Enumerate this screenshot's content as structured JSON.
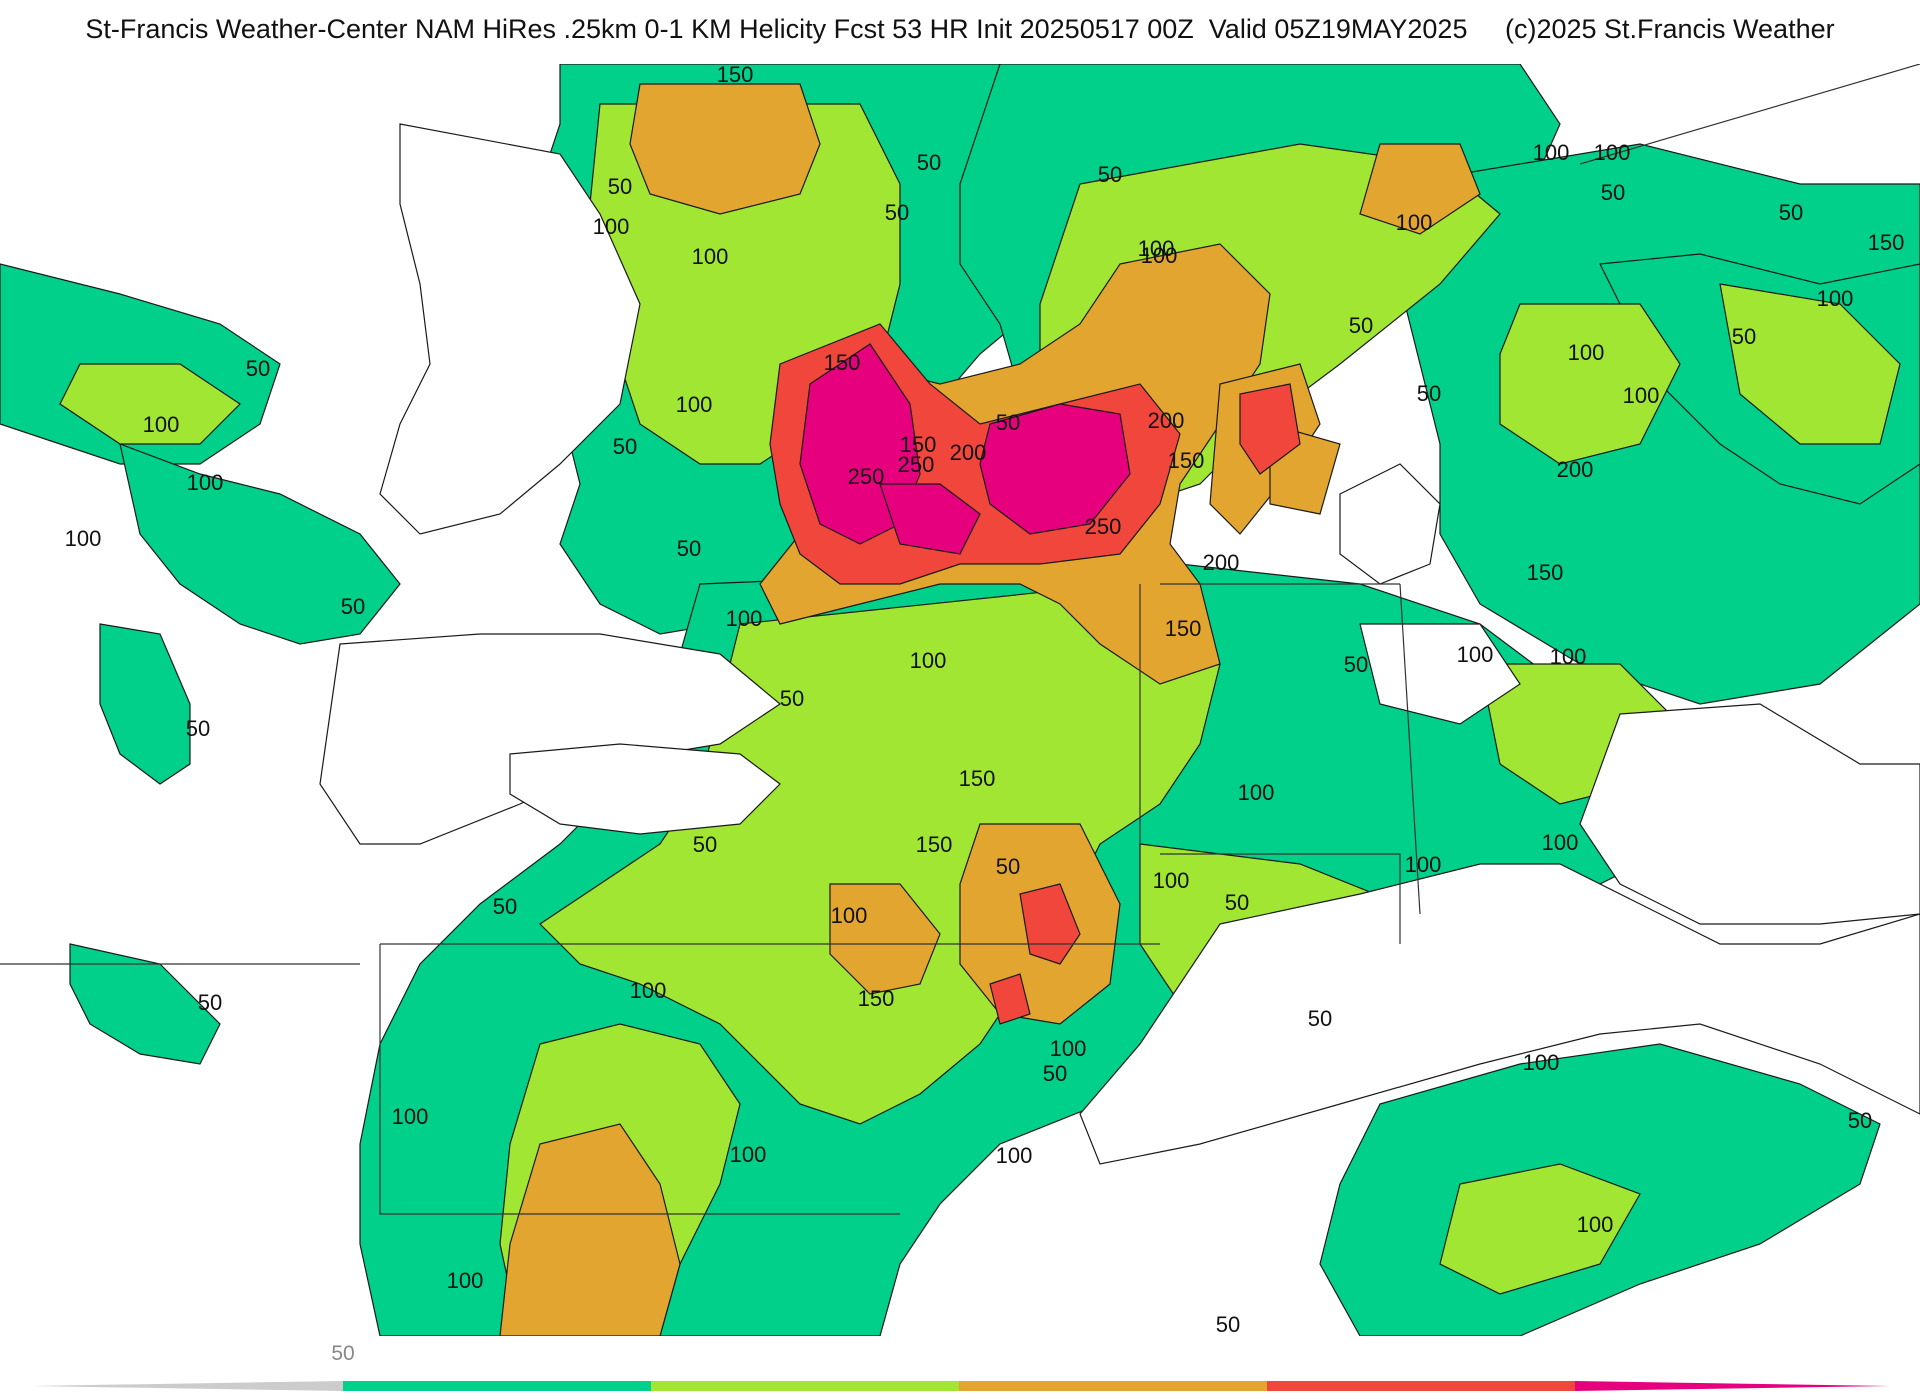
{
  "header": {
    "title": "St-Francis Weather-Center NAM HiRes .25km 0-1 KM Helicity Fcst 53 HR Init 20250517 00Z  Valid 05Z19MAY2025     (c)2025 St.Francis Weather"
  },
  "contour_labels": [
    "150",
    "50",
    "50",
    "100",
    "50",
    "100",
    "50",
    "100",
    "100",
    "150",
    "100",
    "50",
    "100",
    "50",
    "100",
    "50",
    "150",
    "100",
    "200",
    "100",
    "50",
    "100",
    "50",
    "100",
    "100",
    "50",
    "100",
    "50",
    "50",
    "150",
    "250",
    "250",
    "200",
    "250",
    "200",
    "150",
    "200",
    "100",
    "50",
    "150",
    "50",
    "100",
    "100",
    "150",
    "100",
    "50",
    "100",
    "50",
    "50",
    "100",
    "150",
    "50",
    "150",
    "100",
    "100",
    "50",
    "100",
    "50",
    "50",
    "100",
    "50",
    "50",
    "100",
    "100",
    "150",
    "100",
    "50",
    "100",
    "50",
    "100",
    "100",
    "50",
    "100",
    "100"
  ],
  "legend": {
    "tick_label": "50",
    "colors": [
      "#cccccc",
      "#00d08a",
      "#a0e632",
      "#e2a530",
      "#f0463c",
      "#e6007e"
    ]
  }
}
